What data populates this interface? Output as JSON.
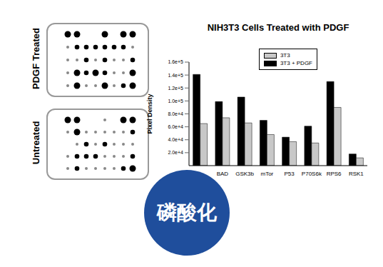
{
  "chart_data": {
    "type": "bar",
    "title": "NIH3T3 Cells Treated with PDGF",
    "y_label": "Pixel Density",
    "categories": [
      null,
      "BAD",
      "GSK3b",
      "mTor",
      "P53",
      "P70S6k",
      "RPS6",
      "RSK1"
    ],
    "series": [
      {
        "name": "3T3 + PDGF",
        "color": "#000000",
        "values": [
          141000,
          99000,
          106000,
          70000,
          44000,
          61000,
          130000,
          18000
        ]
      },
      {
        "name": "3T3",
        "color": "#c8c8c8",
        "values": [
          65000,
          74000,
          66000,
          48000,
          37000,
          35000,
          90000,
          12000
        ]
      }
    ],
    "ylim": [
      0,
      160000
    ],
    "yticks": [
      {
        "value": 20000,
        "label": "2.0e+4"
      },
      {
        "value": 40000,
        "label": "4.0e+4"
      },
      {
        "value": 60000,
        "label": "6.0e+4"
      },
      {
        "value": 80000,
        "label": "8.0e+4"
      },
      {
        "value": 100000,
        "label": "1.0e+5"
      },
      {
        "value": 120000,
        "label": "1.2e+5"
      },
      {
        "value": 140000,
        "label": "1.4e+5"
      },
      {
        "value": 160000,
        "label": "1.6e+5"
      }
    ],
    "legend": "upper right",
    "grid": false
  },
  "blot_labels": [
    "PDGF Treated",
    "Untreated"
  ],
  "badge": "磷酸化"
}
